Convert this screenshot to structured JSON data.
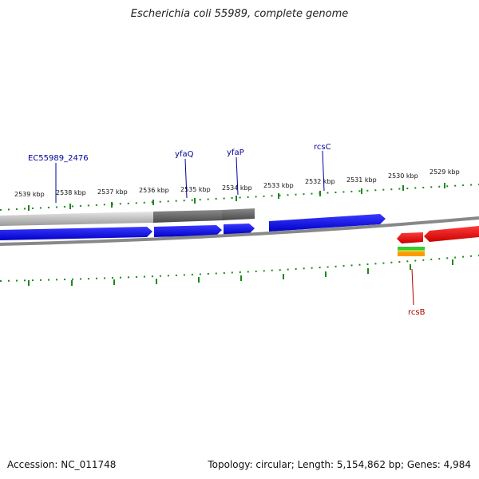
{
  "title": "Escherichia coli 55989, complete genome",
  "footer": {
    "accession": "Accession: NC_011748",
    "summary": "Topology: circular; Length: 5,154,862 bp; Genes: 4,984"
  },
  "ruler_labels": [
    "2539 kbp",
    "2538 kbp",
    "2537 kbp",
    "2536 kbp",
    "2535 kbp",
    "2534 kbp",
    "2533 kbp",
    "2532 kbp",
    "2531 kbp",
    "2530 kbp",
    "2529 kbp"
  ],
  "gene_labels": {
    "ec": "EC55989_2476",
    "yfaQ": "yfaQ",
    "yfaP": "yfaP",
    "rcsC": "rcsC",
    "rcsB": "rcsB"
  },
  "colors": {
    "forward": "#0000ee",
    "reverse": "#ee0000",
    "label_forward": "#000099",
    "label_reverse": "#aa0000",
    "ticks": "#1a8a1a",
    "backbone": "#888888"
  }
}
